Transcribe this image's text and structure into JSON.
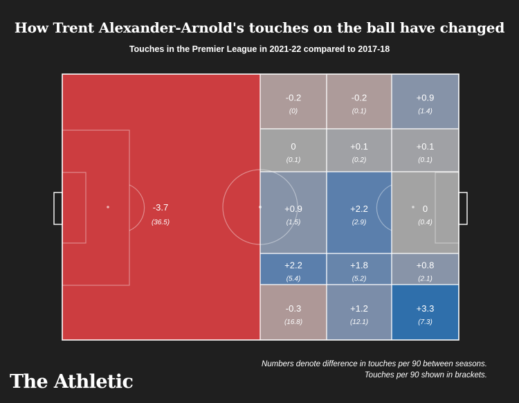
{
  "header": {
    "title": "How Trent Alexander-Arnold's touches on the ball have changed",
    "subtitle": "Touches in the Premier League in 2021-22 compared to 2017-18"
  },
  "footer": {
    "note_line1": "Numbers denote difference in touches per 90 between seasons.",
    "note_line2": "Touches per 90 shown in brackets.",
    "logo": "The Athletic"
  },
  "colors": {
    "background": "#1f1f1f",
    "large_negative": "#cc3d40",
    "small_negative": "#ad9b9a",
    "neutral": "#a3a3a3",
    "small_positive": "#8a95a9",
    "medium_positive": "#5b7fac",
    "large_positive": "#2f6fab",
    "lines": "#ffffff"
  },
  "chart_data": {
    "type": "heatmap",
    "description_of_zones": "own half as one zone; opponent half split into 3 columns x 5 rows",
    "zones": [
      {
        "zone": "own-half",
        "diff": "-3.7",
        "touches": "(36.5)",
        "color": "#cc3d40"
      },
      {
        "zone": "r1c1",
        "diff": "-0.2",
        "touches": "(0)",
        "color": "#ad9b9a"
      },
      {
        "zone": "r1c2",
        "diff": "-0.2",
        "touches": "(0.1)",
        "color": "#ad9b9a"
      },
      {
        "zone": "r1c3",
        "diff": "+0.9",
        "touches": "(1.4)",
        "color": "#8693a8"
      },
      {
        "zone": "r2c1",
        "diff": "0",
        "touches": "(0.1)",
        "color": "#a3a3a3"
      },
      {
        "zone": "r2c2",
        "diff": "+0.1",
        "touches": "(0.2)",
        "color": "#a0a1a5"
      },
      {
        "zone": "r2c3",
        "diff": "+0.1",
        "touches": "(0.1)",
        "color": "#a0a1a5"
      },
      {
        "zone": "r3c1",
        "diff": "+0.9",
        "touches": "(1.5)",
        "color": "#8693a8"
      },
      {
        "zone": "r3c2",
        "diff": "+2.2",
        "touches": "(2.9)",
        "color": "#5b7fac"
      },
      {
        "zone": "r3c3",
        "diff": "0",
        "touches": "(0.4)",
        "color": "#a3a3a3"
      },
      {
        "zone": "r4c1",
        "diff": "+2.2",
        "touches": "(5.4)",
        "color": "#5b7fac"
      },
      {
        "zone": "r4c2",
        "diff": "+1.8",
        "touches": "(5.2)",
        "color": "#6785ab"
      },
      {
        "zone": "r4c3",
        "diff": "+0.8",
        "touches": "(2.1)",
        "color": "#8894a8"
      },
      {
        "zone": "r5c1",
        "diff": "-0.3",
        "touches": "(16.8)",
        "color": "#ae9897"
      },
      {
        "zone": "r5c2",
        "diff": "+1.2",
        "touches": "(12.1)",
        "color": "#7b8da9"
      },
      {
        "zone": "r5c3",
        "diff": "+3.3",
        "touches": "(7.3)",
        "color": "#2f6fab"
      }
    ]
  }
}
